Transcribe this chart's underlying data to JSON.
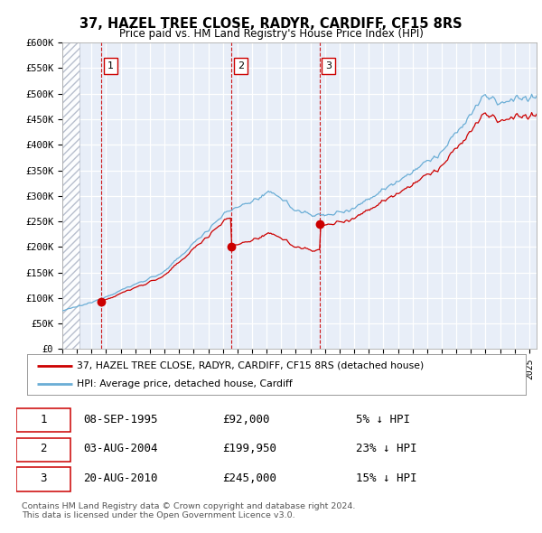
{
  "title": "37, HAZEL TREE CLOSE, RADYR, CARDIFF, CF15 8RS",
  "subtitle": "Price paid vs. HM Land Registry's House Price Index (HPI)",
  "xlim": [
    1993,
    2025.5
  ],
  "ylim": [
    0,
    600000
  ],
  "yticks": [
    0,
    50000,
    100000,
    150000,
    200000,
    250000,
    300000,
    350000,
    400000,
    450000,
    500000,
    550000,
    600000
  ],
  "ytick_labels": [
    "£0",
    "£50K",
    "£100K",
    "£150K",
    "£200K",
    "£250K",
    "£300K",
    "£350K",
    "£400K",
    "£450K",
    "£500K",
    "£550K",
    "£600K"
  ],
  "purchases": [
    {
      "date_x": 1995.69,
      "price": 92000,
      "label": "1"
    },
    {
      "date_x": 2004.59,
      "price": 199950,
      "label": "2"
    },
    {
      "date_x": 2010.63,
      "price": 245000,
      "label": "3"
    }
  ],
  "table_rows": [
    [
      "1",
      "08-SEP-1995",
      "£92,000",
      "5% ↓ HPI"
    ],
    [
      "2",
      "03-AUG-2004",
      "£199,950",
      "23% ↓ HPI"
    ],
    [
      "3",
      "20-AUG-2010",
      "£245,000",
      "15% ↓ HPI"
    ]
  ],
  "legend_line1": "37, HAZEL TREE CLOSE, RADYR, CARDIFF, CF15 8RS (detached house)",
  "legend_line2": "HPI: Average price, detached house, Cardiff",
  "footer_line1": "Contains HM Land Registry data © Crown copyright and database right 2024.",
  "footer_line2": "This data is licensed under the Open Government Licence v3.0.",
  "hpi_color": "#6BAED6",
  "price_color": "#CC0000",
  "bg_color": "#FFFFFF",
  "plot_bg": "#E8EEF8"
}
